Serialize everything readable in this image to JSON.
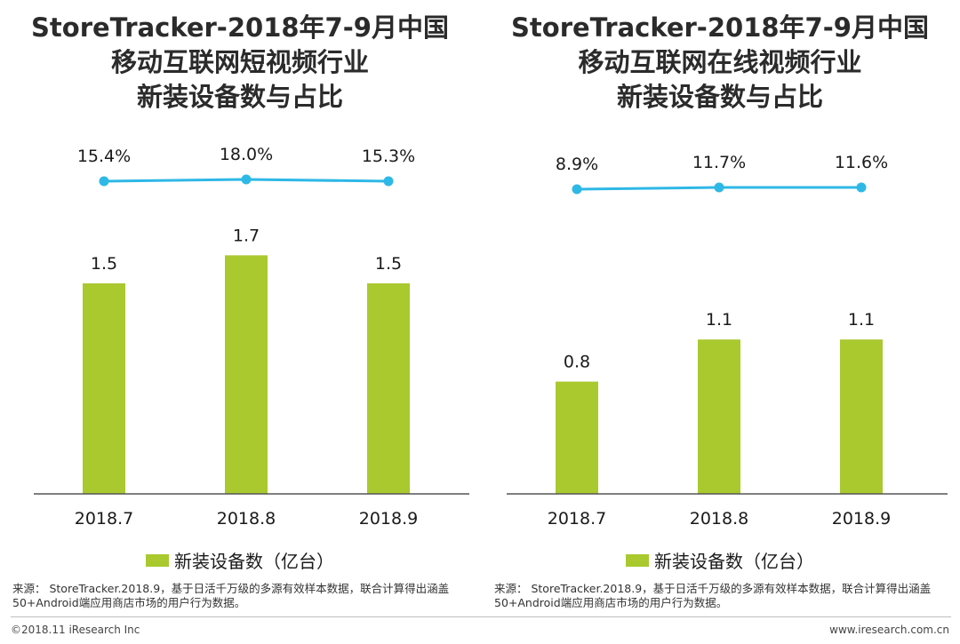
{
  "colors": {
    "bar": "#a9c92f",
    "line": "#2eb8e6",
    "axis": "#555555"
  },
  "charts": [
    {
      "title_lines": [
        "StoreTracker-2018年7-9月中国",
        "移动互联网短视频行业",
        "新装设备数与占比"
      ],
      "legend": "新装设备数（亿台）",
      "source": "来源： StoreTracker.2018.9，基于日活千万级的多源有效样本数据，联合计算得出涵盖50+Android端应用商店市场的用户行为数据。"
    },
    {
      "title_lines": [
        "StoreTracker-2018年7-9月中国",
        "移动互联网在线视频行业",
        "新装设备数与占比"
      ],
      "legend": "新装设备数（亿台）",
      "source": "来源： StoreTracker.2018.9，基于日活千万级的多源有效样本数据，联合计算得出涵盖50+Android端应用商店市场的用户行为数据。"
    }
  ],
  "chart_data": [
    {
      "type": "bar",
      "title": "StoreTracker-2018年7-9月中国移动互联网短视频行业新装设备数与占比",
      "categories": [
        "2018.7",
        "2018.8",
        "2018.9"
      ],
      "series": [
        {
          "name": "新装设备数（亿台）",
          "type": "bar",
          "values": [
            1.5,
            1.7,
            1.5
          ],
          "labels": [
            "1.5",
            "1.7",
            "1.5"
          ]
        },
        {
          "name": "占比",
          "type": "line",
          "values": [
            15.4,
            18.0,
            15.3
          ],
          "labels": [
            "15.4%",
            "18.0%",
            "15.3%"
          ]
        }
      ],
      "xlabel": "",
      "ylabel": "",
      "ylim": [
        0,
        2.0
      ]
    },
    {
      "type": "bar",
      "title": "StoreTracker-2018年7-9月中国移动互联网在线视频行业新装设备数与占比",
      "categories": [
        "2018.7",
        "2018.8",
        "2018.9"
      ],
      "series": [
        {
          "name": "新装设备数（亿台）",
          "type": "bar",
          "values": [
            0.8,
            1.1,
            1.1
          ],
          "labels": [
            "0.8",
            "1.1",
            "1.1"
          ]
        },
        {
          "name": "占比",
          "type": "line",
          "values": [
            8.9,
            11.7,
            11.6
          ],
          "labels": [
            "8.9%",
            "11.7%",
            "11.6%"
          ]
        }
      ],
      "xlabel": "",
      "ylabel": "",
      "ylim": [
        0,
        2.0
      ]
    }
  ],
  "footer": {
    "copyright": "©2018.11 iResearch Inc",
    "website": "www.iresearch.com.cn"
  }
}
